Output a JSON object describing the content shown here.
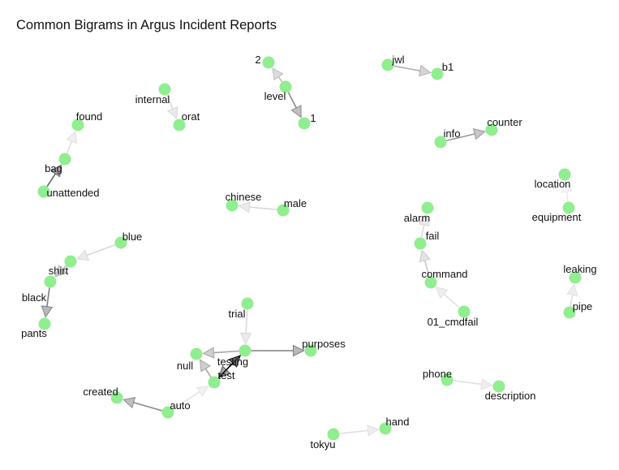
{
  "title": "Common Bigrams in Argus Incident Reports",
  "colors": {
    "node": "#90ee90",
    "edge": "#000000",
    "label": "#111111"
  },
  "nodes": [
    {
      "id": "2",
      "label": "2"
    },
    {
      "id": "level",
      "label": "level"
    },
    {
      "id": "1",
      "label": "1"
    },
    {
      "id": "jwl",
      "label": "jwl"
    },
    {
      "id": "b1",
      "label": "b1"
    },
    {
      "id": "internal",
      "label": "internal"
    },
    {
      "id": "orat",
      "label": "orat"
    },
    {
      "id": "found",
      "label": "found"
    },
    {
      "id": "bag",
      "label": "bag"
    },
    {
      "id": "unattended",
      "label": "unattended"
    },
    {
      "id": "info",
      "label": "info"
    },
    {
      "id": "counter",
      "label": "counter"
    },
    {
      "id": "location",
      "label": "location"
    },
    {
      "id": "equipment",
      "label": "equipment"
    },
    {
      "id": "chinese",
      "label": "chinese"
    },
    {
      "id": "male",
      "label": "male"
    },
    {
      "id": "alarm",
      "label": "alarm"
    },
    {
      "id": "fail",
      "label": "fail"
    },
    {
      "id": "command",
      "label": "command"
    },
    {
      "id": "01_cmdfail",
      "label": "01_cmdfail"
    },
    {
      "id": "blue",
      "label": "blue"
    },
    {
      "id": "shirt",
      "label": "shirt"
    },
    {
      "id": "black",
      "label": "black"
    },
    {
      "id": "pants",
      "label": "pants"
    },
    {
      "id": "leaking",
      "label": "leaking"
    },
    {
      "id": "pipe",
      "label": "pipe"
    },
    {
      "id": "trial",
      "label": "trial"
    },
    {
      "id": "testing",
      "label": "testing"
    },
    {
      "id": "purposes",
      "label": "purposes"
    },
    {
      "id": "null",
      "label": "null"
    },
    {
      "id": "test",
      "label": "test"
    },
    {
      "id": "auto",
      "label": "auto"
    },
    {
      "id": "created",
      "label": "created"
    },
    {
      "id": "phone",
      "label": "phone"
    },
    {
      "id": "description",
      "label": "description"
    },
    {
      "id": "tokyu",
      "label": "tokyu"
    },
    {
      "id": "hand",
      "label": "hand"
    }
  ],
  "edges": [
    {
      "from": "level",
      "to": "2",
      "opacity": 0.25
    },
    {
      "from": "level",
      "to": "1",
      "opacity": 0.45
    },
    {
      "from": "jwl",
      "to": "b1",
      "opacity": 0.3
    },
    {
      "from": "internal",
      "to": "orat",
      "opacity": 0.15
    },
    {
      "from": "bag",
      "to": "found",
      "opacity": 0.12
    },
    {
      "from": "unattended",
      "to": "bag",
      "opacity": 0.6
    },
    {
      "from": "info",
      "to": "counter",
      "opacity": 0.4
    },
    {
      "from": "equipment",
      "to": "location",
      "opacity": 0.08
    },
    {
      "from": "male",
      "to": "chinese",
      "opacity": 0.15
    },
    {
      "from": "fail",
      "to": "alarm",
      "opacity": 0.15
    },
    {
      "from": "command",
      "to": "fail",
      "opacity": 0.2
    },
    {
      "from": "01_cmdfail",
      "to": "command",
      "opacity": 0.12
    },
    {
      "from": "blue",
      "to": "shirt",
      "opacity": 0.15
    },
    {
      "from": "shirt",
      "to": "black",
      "opacity": 0.3
    },
    {
      "from": "black",
      "to": "pants",
      "opacity": 0.5
    },
    {
      "from": "pipe",
      "to": "leaking",
      "opacity": 0.12
    },
    {
      "from": "trial",
      "to": "testing",
      "opacity": 0.15
    },
    {
      "from": "testing",
      "to": "purposes",
      "opacity": 0.5
    },
    {
      "from": "testing",
      "to": "null",
      "opacity": 0.35
    },
    {
      "from": "test",
      "to": "null",
      "opacity": 0.35
    },
    {
      "from": "test",
      "to": "testing",
      "opacity": 0.95
    },
    {
      "from": "testing",
      "to": "test",
      "opacity": 0.65
    },
    {
      "from": "auto",
      "to": "test",
      "opacity": 0.1
    },
    {
      "from": "auto",
      "to": "created",
      "opacity": 0.45
    },
    {
      "from": "phone",
      "to": "description",
      "opacity": 0.12
    },
    {
      "from": "tokyu",
      "to": "hand",
      "opacity": 0.12
    }
  ]
}
